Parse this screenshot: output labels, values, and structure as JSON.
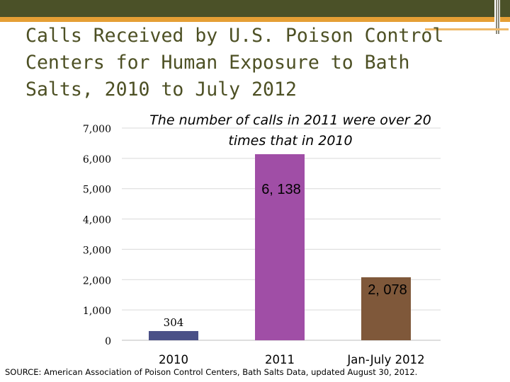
{
  "slide": {
    "title": "Calls Received by U.S. Poison Control Centers for Human Exposure to Bath Salts, 2010 to July 2012",
    "callout": "The number of calls in 2011 were over 20 times that in 2010",
    "source": "SOURCE: American Association of Poison Control Centers, Bath Salts Data, updated August 30, 2012."
  },
  "chart_data": {
    "type": "bar",
    "categories": [
      "2010",
      "2011",
      "Jan-July 2012"
    ],
    "values": [
      304,
      6138,
      2078
    ],
    "data_labels": [
      "304",
      "6, 138",
      "2, 078"
    ],
    "yticks": [
      "0",
      "1,000",
      "2,000",
      "3,000",
      "4,000",
      "5,000",
      "6,000",
      "7,000"
    ],
    "ylim": [
      0,
      7000
    ],
    "grid": true,
    "title": "",
    "xlabel": "",
    "ylabel": "",
    "colors": [
      "#4a5087",
      "#a04ea6",
      "#7f583a"
    ]
  }
}
